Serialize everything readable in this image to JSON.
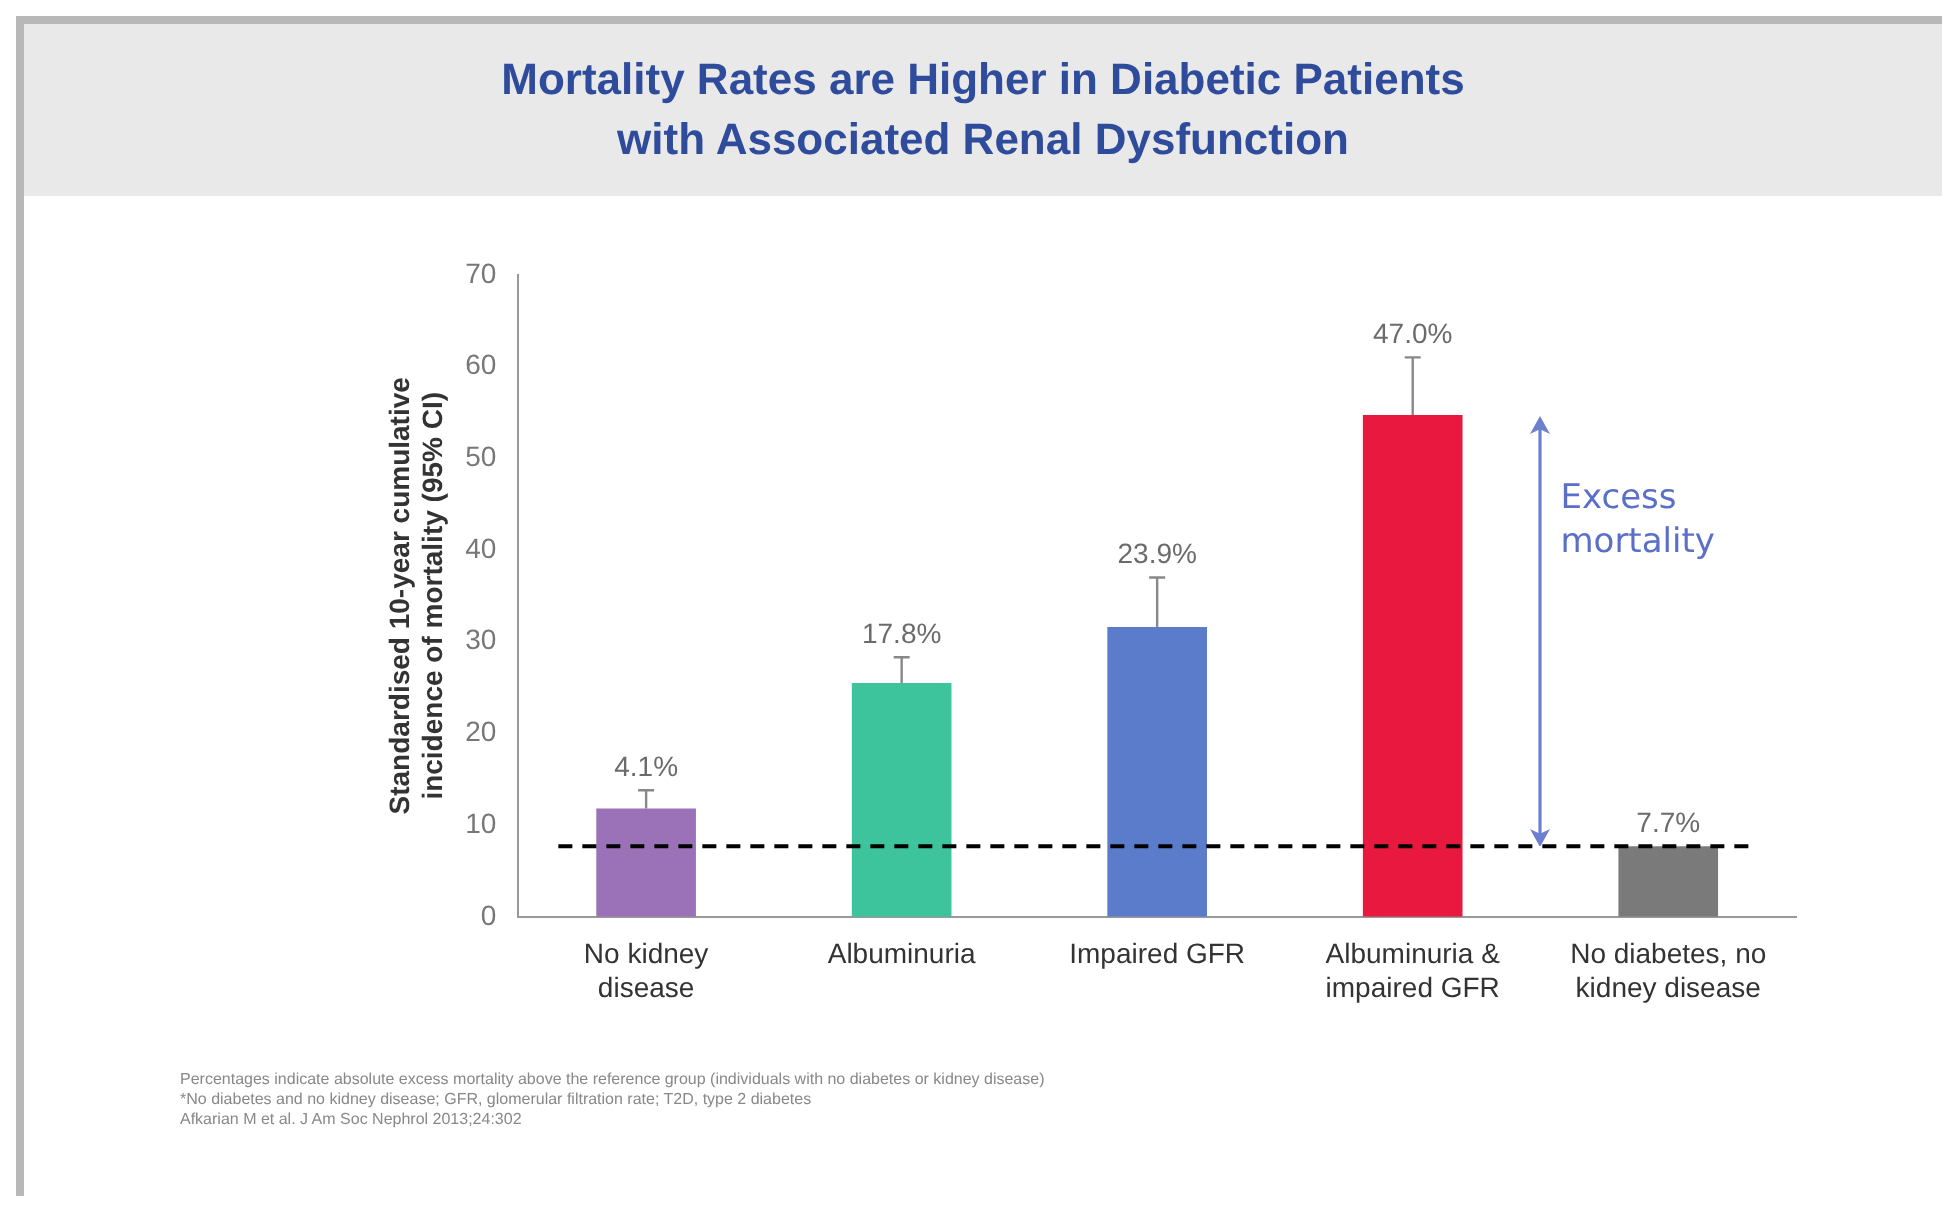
{
  "chart_data": {
    "type": "bar",
    "title": "Mortality Rates are Higher in Diabetic Patients\nwith Associated Renal Dysfunction",
    "ylabel": "Standardised 10-year cumulative\nincidence of mortality (95% CI)",
    "categories": [
      "No kidney disease",
      "Albuminuria",
      "Impaired GFR",
      "Albuminuria & impaired GFR",
      "No diabetes, no kidney disease"
    ],
    "values": [
      11.8,
      25.5,
      31.6,
      54.7,
      7.7
    ],
    "colors": [
      "#9b72b8",
      "#3ec49c",
      "#5b7bcb",
      "#e8183f",
      "#7a7a7a"
    ],
    "errors": [
      [
        11.8,
        13.8
      ],
      [
        25.5,
        28.3
      ],
      [
        31.6,
        37.0
      ],
      [
        54.7,
        61.0
      ],
      null
    ],
    "ylim": [
      0,
      70
    ],
    "yticks": [
      0,
      10,
      20,
      30,
      40,
      50,
      60,
      70
    ],
    "ref_lines": [
      {
        "axis": "y",
        "value": 7.7,
        "color": "#000000",
        "line_style": "dashed"
      }
    ],
    "annotations": [
      "Excess mortality",
      {
        "text": "4.1%",
        "x": "No kidney disease",
        "y": 13.8
      },
      {
        "text": "17.8%",
        "x": "Albuminuria",
        "y": 28.3
      },
      {
        "text": "23.9%",
        "x": "Impaired GFR",
        "y": 37.0
      },
      {
        "text": "47.0%",
        "x": "Albuminuria & impaired GFR",
        "y": 61.0
      },
      {
        "text": "7.7%",
        "x": "No diabetes, no kidney disease",
        "y": 7.7
      },
      "Percentages indicate absolute excess mortality above the reference group (individuals with no diabetes or kidney disease)",
      "*No diabetes and no kidney disease; GFR, glomerular filtration rate; T2D, type 2 diabetes",
      "Afkarian M et al. J Am Soc Nephrol 2013;24:302"
    ],
    "grid": false,
    "legend": false
  }
}
